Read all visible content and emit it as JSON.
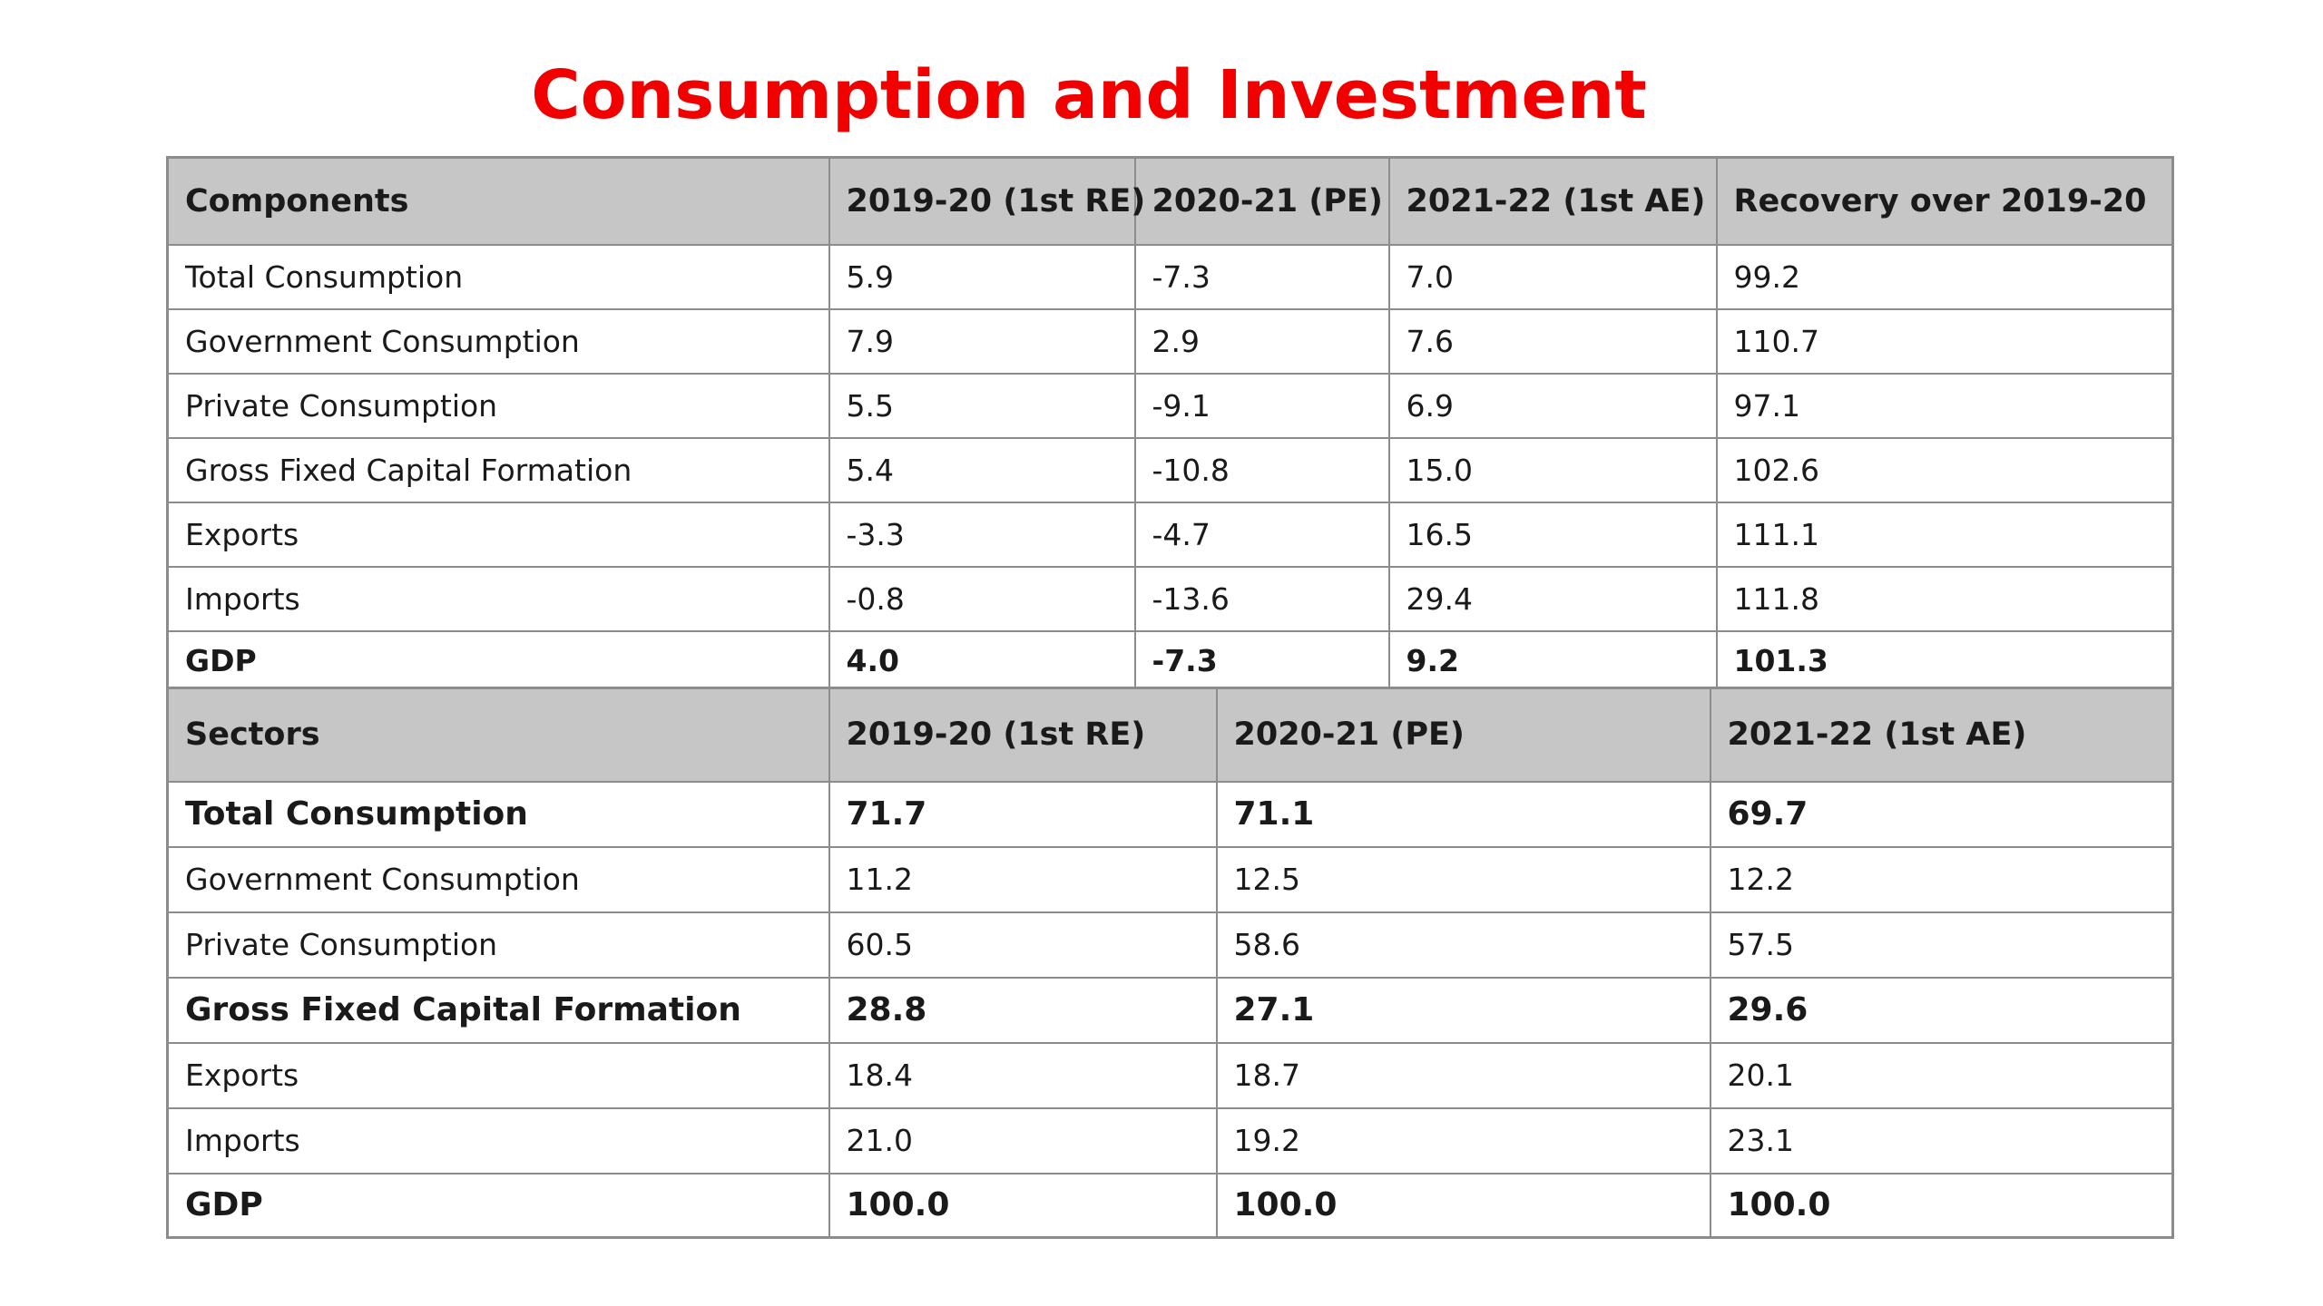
{
  "title": "Consumption and Investment",
  "components_table": {
    "headers": [
      "Components",
      "2019-20 (1st RE)",
      "2020-21 (PE)",
      "2021-22 (1st AE)",
      "Recovery over 2019-20"
    ],
    "rows": [
      {
        "label": "Total Consumption",
        "values": [
          "5.9",
          "-7.3",
          "7.0",
          "99.2"
        ]
      },
      {
        "label": "Government Consumption",
        "values": [
          "7.9",
          "2.9",
          "7.6",
          "110.7"
        ]
      },
      {
        "label": "Private Consumption",
        "values": [
          "5.5",
          "-9.1",
          "6.9",
          "97.1"
        ]
      },
      {
        "label": "Gross Fixed Capital Formation",
        "values": [
          "5.4",
          "-10.8",
          "15.0",
          "102.6"
        ]
      },
      {
        "label": "Exports",
        "values": [
          "-3.3",
          "-4.7",
          "16.5",
          "111.1"
        ]
      },
      {
        "label": "Imports",
        "values": [
          "-0.8",
          "-13.6",
          "29.4",
          "111.8"
        ]
      },
      {
        "label": "GDP",
        "values": [
          "4.0",
          "-7.3",
          "9.2",
          "101.3"
        ]
      }
    ]
  },
  "sectors_table": {
    "headers": [
      "Sectors",
      "2019-20 (1st RE)",
      "2020-21 (PE)",
      "2021-22 (1st AE)"
    ],
    "rows": [
      {
        "label": "Total Consumption",
        "values": [
          "71.7",
          "71.1",
          "69.7"
        ]
      },
      {
        "label": "Government Consumption",
        "values": [
          "11.2",
          "12.5",
          "12.2"
        ]
      },
      {
        "label": "Private Consumption",
        "values": [
          "60.5",
          "58.6",
          "57.5"
        ]
      },
      {
        "label": "Gross Fixed Capital Formation",
        "values": [
          "28.8",
          "27.1",
          "29.6"
        ]
      },
      {
        "label": "Exports",
        "values": [
          "18.4",
          "18.7",
          "20.1"
        ]
      },
      {
        "label": "Imports",
        "values": [
          "21.0",
          "19.2",
          "23.1"
        ]
      },
      {
        "label": "GDP",
        "values": [
          "100.0",
          "100.0",
          "100.0"
        ]
      }
    ]
  },
  "colors": {
    "title": "#f20000",
    "header_bg": "#c6c6c6",
    "border": "#8c8c8c"
  }
}
